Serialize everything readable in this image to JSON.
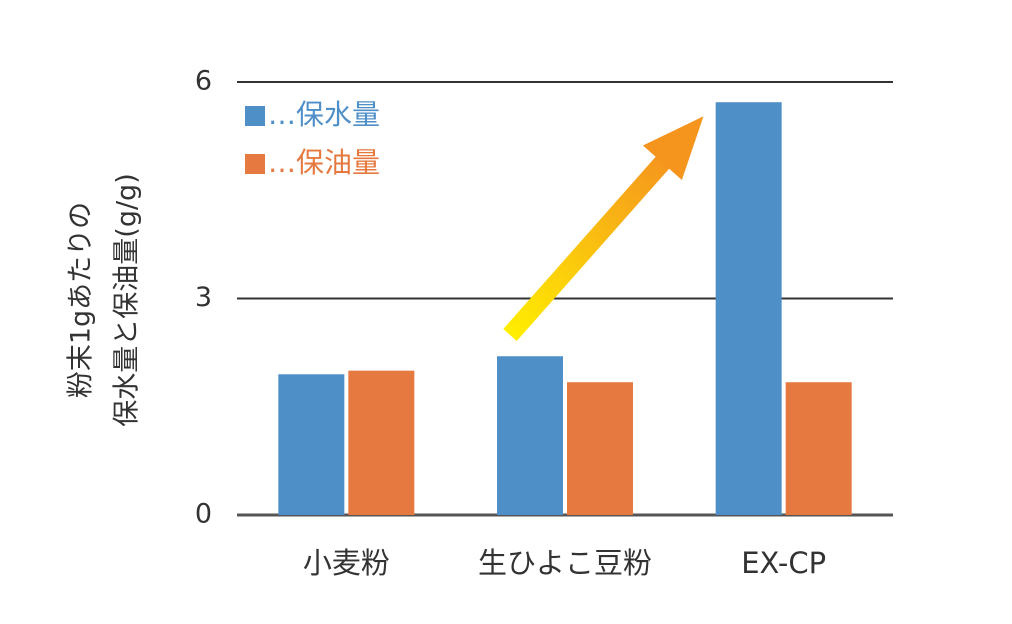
{
  "chart_data": {
    "type": "bar",
    "ylabel": [
      "粉末1gあたりの",
      "保水量と保油量(g/g)"
    ],
    "categories": [
      "小麦粉",
      "生ひよこ豆粉",
      "EX-CP"
    ],
    "series": [
      {
        "name": "…保水量",
        "color": "#4f8fc8",
        "values": [
          1.95,
          2.2,
          5.72
        ]
      },
      {
        "name": "…保油量",
        "color": "#e5793f",
        "values": [
          2.0,
          1.84,
          1.84
        ]
      }
    ],
    "ylim": [
      0,
      6
    ],
    "yticks": [
      0,
      3,
      6
    ],
    "grid": true,
    "legend": "top-left"
  }
}
